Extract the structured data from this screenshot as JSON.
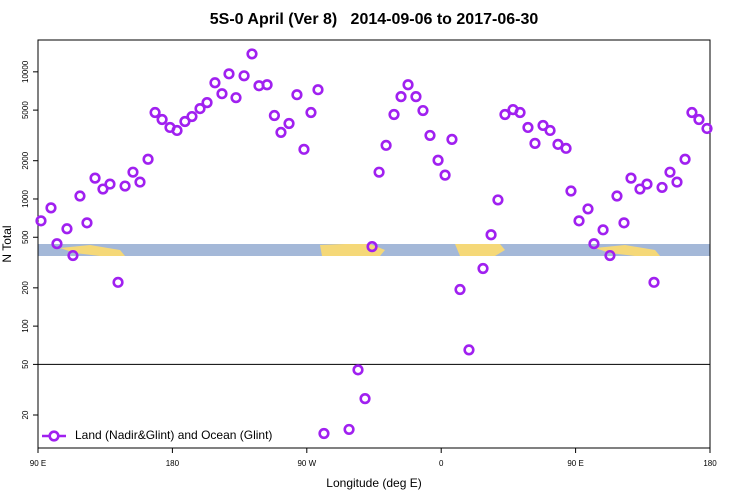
{
  "chart_data": {
    "type": "scatter",
    "title": "5S-0 April (Ver 8)   2014-09-06 to 2017-06-30",
    "x_label": "Longitude (deg E)",
    "y_label": "N Total",
    "log_y": true,
    "legend": "bottom-left",
    "hlines": [
      50
    ],
    "xlim": [
      90,
      540
    ],
    "xticks": [
      {
        "value": 90,
        "label": "90 E"
      },
      180,
      {
        "value": 270,
        "label": "90 W"
      },
      {
        "value": 360,
        "label": "0"
      },
      {
        "value": 450,
        "label": "90 E"
      },
      {
        "value": 540,
        "label": "180"
      }
    ],
    "ylim": [
      11,
      17800
    ],
    "yticks": [
      20,
      50,
      100,
      200,
      500,
      1000,
      2000,
      5000,
      10000
    ],
    "series": [
      {
        "name": "Land (Nadir&Glint) and Ocean (Glint)",
        "color": "#a020f0",
        "x": [
          92,
          98.7,
          102.7,
          109.4,
          113.4,
          118.1,
          122.8,
          128.2,
          133.5,
          138.2,
          143.6,
          148.3,
          153.6,
          158.3,
          163.7,
          168.4,
          173.1,
          178.4,
          183.1,
          188.4,
          193.1,
          198.5,
          203.2,
          208.5,
          213.2,
          217.9,
          222.6,
          228,
          233.3,
          238,
          243.4,
          248.3,
          252.7,
          258.1,
          263.4,
          268.1,
          272.8,
          277.5,
          281.5,
          298.3,
          304.3,
          309,
          313.7,
          318.4,
          323.1,
          328.4,
          333.1,
          337.8,
          343.1,
          347.8,
          352.5,
          357.9,
          362.6,
          367.2,
          372.6,
          378.6,
          388,
          393.4,
          398,
          402.7,
          408.1,
          412.8,
          418.1,
          422.8,
          428.2,
          432.9,
          438.2,
          443.6,
          446.9,
          452.3,
          458.3,
          462.3,
          468.4,
          473,
          477.7,
          482.4,
          487.1,
          493.1,
          497.8,
          502.5,
          507.9,
          513.2,
          517.9,
          523.3,
          527.9,
          532.6,
          538
        ],
        "values": [
          673,
          851,
          445,
          583,
          359,
          1055,
          649,
          1459,
          1197,
          1310,
          221,
          1264,
          1625,
          1358,
          2054,
          4786,
          4217,
          3652,
          3459,
          4067,
          4450,
          5139,
          5728,
          8203,
          6731,
          9647,
          6264,
          9307,
          13830,
          7778,
          7912,
          4533,
          3339,
          3925,
          6610,
          2458,
          4786,
          7237,
          14.3,
          15.4,
          45.3,
          26.9,
          422,
          1625,
          2642,
          4617,
          6381,
          7912,
          6381,
          4960,
          3162,
          2017,
          1540,
          2943,
          194,
          65,
          284,
          523,
          983,
          4617,
          5046,
          4786,
          3652,
          2738,
          3788,
          3459,
          2690,
          2503,
          1155,
          673,
          835,
          445,
          572,
          359,
          1055,
          649,
          1459,
          1197,
          1310,
          221,
          1233,
          1625,
          1358,
          2054,
          4786,
          4217,
          3586
        ]
      }
    ]
  }
}
